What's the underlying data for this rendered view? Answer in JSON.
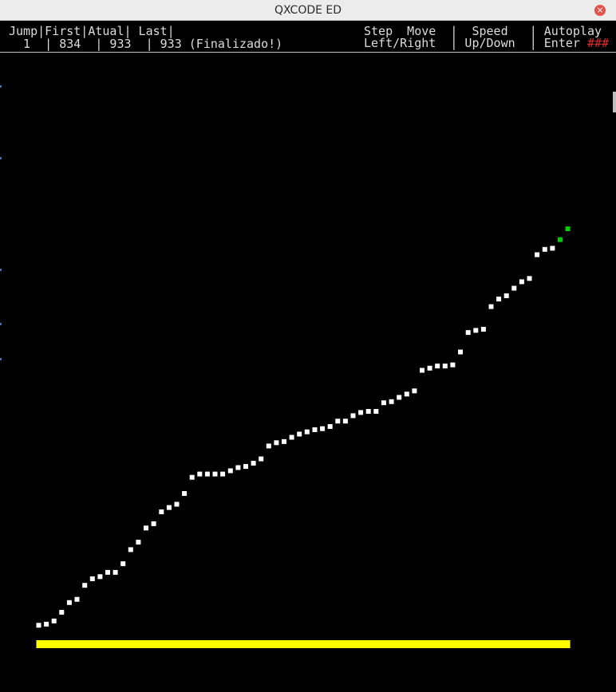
{
  "window": {
    "title": "QXCODE ED",
    "close_icon": "close-icon"
  },
  "header": {
    "cols_line": "Jump|First|Atual| Last|",
    "values_line": "  1  | 834  | 933  | 933 (Finalizado!)",
    "help_line1": "Step  Move  |  Speed   | Autoplay",
    "help_line2": "Left/Right  | Up/Down  | Enter ",
    "help_marker": "###"
  },
  "colors": {
    "background": "#000000",
    "point": "#ffffff",
    "current_point": "#00cc00",
    "base_bar": "#ffff00",
    "marker": "#e02828"
  },
  "chart_data": {
    "type": "scatter",
    "title": "",
    "xlabel": "",
    "ylabel": "",
    "grid": false,
    "points": [
      [
        1,
        2
      ],
      [
        2,
        3
      ],
      [
        3,
        6
      ],
      [
        4,
        14
      ],
      [
        5,
        23
      ],
      [
        6,
        26
      ],
      [
        7,
        39
      ],
      [
        8,
        45
      ],
      [
        9,
        47
      ],
      [
        10,
        51
      ],
      [
        11,
        51
      ],
      [
        12,
        59
      ],
      [
        13,
        72
      ],
      [
        14,
        79
      ],
      [
        15,
        92
      ],
      [
        16,
        96
      ],
      [
        17,
        107
      ],
      [
        18,
        111
      ],
      [
        19,
        114
      ],
      [
        20,
        124
      ],
      [
        21,
        139
      ],
      [
        22,
        142
      ],
      [
        23,
        142
      ],
      [
        24,
        142
      ],
      [
        25,
        142
      ],
      [
        26,
        145
      ],
      [
        27,
        148
      ],
      [
        28,
        149
      ],
      [
        29,
        152
      ],
      [
        30,
        156
      ],
      [
        31,
        168
      ],
      [
        32,
        171
      ],
      [
        33,
        172
      ],
      [
        34,
        176
      ],
      [
        35,
        179
      ],
      [
        36,
        181
      ],
      [
        37,
        183
      ],
      [
        38,
        184
      ],
      [
        39,
        186
      ],
      [
        40,
        191
      ],
      [
        41,
        191
      ],
      [
        42,
        196
      ],
      [
        43,
        199
      ],
      [
        44,
        200
      ],
      [
        45,
        200
      ],
      [
        46,
        208
      ],
      [
        47,
        209
      ],
      [
        48,
        213
      ],
      [
        49,
        216
      ],
      [
        50,
        219
      ],
      [
        51,
        238
      ],
      [
        52,
        240
      ],
      [
        53,
        242
      ],
      [
        54,
        242
      ],
      [
        55,
        243
      ],
      [
        56,
        255
      ],
      [
        57,
        273
      ],
      [
        58,
        275
      ],
      [
        59,
        276
      ],
      [
        60,
        297
      ],
      [
        61,
        304
      ],
      [
        62,
        307
      ],
      [
        63,
        314
      ],
      [
        64,
        320
      ],
      [
        65,
        323
      ],
      [
        66,
        345
      ],
      [
        67,
        350
      ],
      [
        68,
        351
      ]
    ],
    "current_points": [
      [
        69,
        359
      ],
      [
        70,
        369
      ]
    ],
    "base_bar": {
      "x_start": 1,
      "x_end": 70
    }
  }
}
